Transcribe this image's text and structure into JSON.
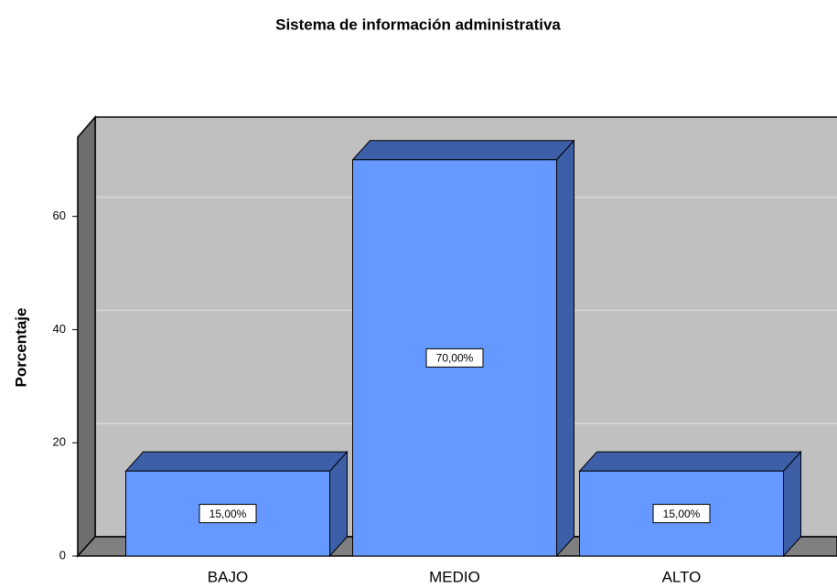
{
  "chart_data": {
    "type": "bar3d",
    "title": "Sistema de información administrativa",
    "y_label": "Porcentaje",
    "categories": [
      "BAJO",
      "MEDIO",
      "ALTO"
    ],
    "values": [
      15,
      70,
      15
    ],
    "value_labels": [
      "15,00%",
      "70,00%",
      "15,00%"
    ],
    "color": "#6699ff",
    "ylim": [
      0,
      74
    ],
    "yticks": [
      0,
      20,
      40,
      60
    ],
    "grid": true
  }
}
